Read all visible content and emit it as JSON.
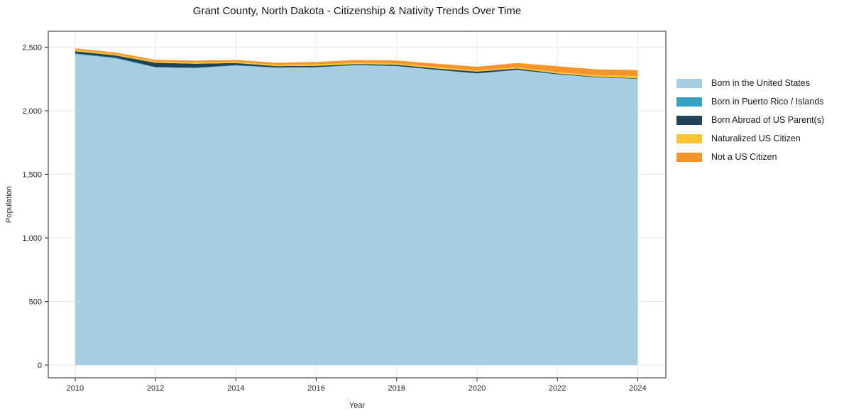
{
  "chart_data": {
    "type": "area",
    "stacked": true,
    "title": "Grant County, North Dakota - Citizenship & Nativity Trends Over Time",
    "xlabel": "Year",
    "ylabel": "Population",
    "x": [
      2010,
      2011,
      2012,
      2013,
      2014,
      2015,
      2016,
      2017,
      2018,
      2019,
      2020,
      2021,
      2022,
      2023,
      2024
    ],
    "series": [
      {
        "name": "Born in the United States",
        "color": "#a6cee3",
        "values": [
          2445,
          2412,
          2340,
          2335,
          2355,
          2338,
          2340,
          2358,
          2350,
          2320,
          2292,
          2320,
          2285,
          2260,
          2250
        ]
      },
      {
        "name": "Born in Puerto Rico / Islands",
        "color": "#35a2c2",
        "values": [
          6,
          5,
          3,
          3,
          3,
          3,
          3,
          2,
          2,
          2,
          2,
          2,
          2,
          2,
          2
        ]
      },
      {
        "name": "Born Abroad of US Parent(s)",
        "color": "#1f4357",
        "values": [
          16,
          18,
          34,
          32,
          17,
          10,
          10,
          7,
          10,
          10,
          14,
          10,
          6,
          4,
          4
        ]
      },
      {
        "name": "Naturalized US Citizen",
        "color": "#fcc330",
        "values": [
          11,
          11,
          11,
          11,
          11,
          11,
          13,
          12,
          11,
          11,
          8,
          9,
          11,
          14,
          18
        ]
      },
      {
        "name": "Not a US Citizen",
        "color": "#f79429",
        "values": [
          12,
          12,
          12,
          13,
          13,
          15,
          18,
          20,
          22,
          27,
          30,
          34,
          46,
          45,
          46
        ]
      }
    ],
    "xticks": [
      2010,
      2012,
      2014,
      2016,
      2018,
      2020,
      2022,
      2024
    ],
    "yticks": [
      0,
      500,
      1000,
      1500,
      2000,
      2500
    ],
    "ylim": [
      0,
      2625
    ],
    "grid": true,
    "gridcolor": "#e8e8e8",
    "axis_color": "#262626",
    "legend_position": "right"
  }
}
